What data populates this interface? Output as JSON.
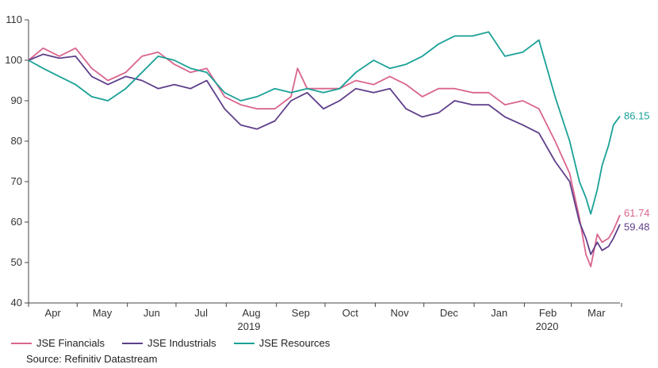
{
  "chart_data": {
    "type": "line",
    "source": "Source: Refinitiv Datastream",
    "ylim": [
      40,
      110
    ],
    "yticks": [
      40,
      50,
      60,
      70,
      80,
      90,
      100,
      110
    ],
    "x_months": [
      "Apr",
      "May",
      "Jun",
      "Jul",
      "Aug",
      "Sep",
      "Oct",
      "Nov",
      "Dec",
      "Jan",
      "Feb",
      "Mar"
    ],
    "x_years": [
      "2019",
      "2020"
    ],
    "grid": false,
    "legend_position": "bottom-left",
    "series": [
      {
        "name": "JSE Financials",
        "color": "#d9658e",
        "end_label": "61.74",
        "points": [
          [
            "2019-04-01",
            100
          ],
          [
            "2019-04-10",
            103
          ],
          [
            "2019-04-20",
            101
          ],
          [
            "2019-04-30",
            103
          ],
          [
            "2019-05-10",
            98
          ],
          [
            "2019-05-20",
            95
          ],
          [
            "2019-05-31",
            97
          ],
          [
            "2019-06-10",
            101
          ],
          [
            "2019-06-20",
            102
          ],
          [
            "2019-06-30",
            99
          ],
          [
            "2019-07-10",
            97
          ],
          [
            "2019-07-20",
            98
          ],
          [
            "2019-07-31",
            91
          ],
          [
            "2019-08-10",
            89
          ],
          [
            "2019-08-20",
            88
          ],
          [
            "2019-08-31",
            88
          ],
          [
            "2019-09-10",
            91
          ],
          [
            "2019-09-14",
            98
          ],
          [
            "2019-09-20",
            93
          ],
          [
            "2019-09-30",
            93
          ],
          [
            "2019-10-10",
            93
          ],
          [
            "2019-10-20",
            95
          ],
          [
            "2019-10-31",
            94
          ],
          [
            "2019-11-10",
            96
          ],
          [
            "2019-11-20",
            94
          ],
          [
            "2019-11-30",
            91
          ],
          [
            "2019-12-10",
            93
          ],
          [
            "2019-12-20",
            93
          ],
          [
            "2019-12-31",
            92
          ],
          [
            "2020-01-10",
            92
          ],
          [
            "2020-01-20",
            89
          ],
          [
            "2020-01-31",
            90
          ],
          [
            "2020-02-10",
            88
          ],
          [
            "2020-02-20",
            80
          ],
          [
            "2020-02-29",
            72
          ],
          [
            "2020-03-06",
            61
          ],
          [
            "2020-03-10",
            52
          ],
          [
            "2020-03-13",
            49
          ],
          [
            "2020-03-17",
            57
          ],
          [
            "2020-03-20",
            55
          ],
          [
            "2020-03-24",
            56
          ],
          [
            "2020-03-27",
            58
          ],
          [
            "2020-03-31",
            61.74
          ]
        ]
      },
      {
        "name": "JSE Industrials",
        "color": "#5e3f8a",
        "end_label": "59.48",
        "points": [
          [
            "2019-04-01",
            100
          ],
          [
            "2019-04-10",
            101.5
          ],
          [
            "2019-04-20",
            100.5
          ],
          [
            "2019-04-30",
            101
          ],
          [
            "2019-05-10",
            96
          ],
          [
            "2019-05-20",
            94
          ],
          [
            "2019-05-31",
            96
          ],
          [
            "2019-06-10",
            95
          ],
          [
            "2019-06-20",
            93
          ],
          [
            "2019-06-30",
            94
          ],
          [
            "2019-07-10",
            93
          ],
          [
            "2019-07-20",
            95
          ],
          [
            "2019-07-31",
            88
          ],
          [
            "2019-08-10",
            84
          ],
          [
            "2019-08-20",
            83
          ],
          [
            "2019-08-31",
            85
          ],
          [
            "2019-09-10",
            90
          ],
          [
            "2019-09-20",
            92
          ],
          [
            "2019-09-30",
            88
          ],
          [
            "2019-10-10",
            90
          ],
          [
            "2019-10-20",
            93
          ],
          [
            "2019-10-31",
            92
          ],
          [
            "2019-11-10",
            93
          ],
          [
            "2019-11-20",
            88
          ],
          [
            "2019-11-30",
            86
          ],
          [
            "2019-12-10",
            87
          ],
          [
            "2019-12-20",
            90
          ],
          [
            "2019-12-31",
            89
          ],
          [
            "2020-01-10",
            89
          ],
          [
            "2020-01-20",
            86
          ],
          [
            "2020-01-31",
            84
          ],
          [
            "2020-02-10",
            82
          ],
          [
            "2020-02-20",
            75
          ],
          [
            "2020-02-29",
            70
          ],
          [
            "2020-03-06",
            60
          ],
          [
            "2020-03-10",
            56
          ],
          [
            "2020-03-13",
            52
          ],
          [
            "2020-03-17",
            55
          ],
          [
            "2020-03-20",
            53
          ],
          [
            "2020-03-24",
            54
          ],
          [
            "2020-03-27",
            56
          ],
          [
            "2020-03-31",
            59.48
          ]
        ]
      },
      {
        "name": "JSE Resources",
        "color": "#1aa197",
        "end_label": "86.15",
        "points": [
          [
            "2019-04-01",
            100
          ],
          [
            "2019-04-10",
            98
          ],
          [
            "2019-04-20",
            96
          ],
          [
            "2019-04-30",
            94
          ],
          [
            "2019-05-10",
            91
          ],
          [
            "2019-05-20",
            90
          ],
          [
            "2019-05-31",
            93
          ],
          [
            "2019-06-10",
            97
          ],
          [
            "2019-06-20",
            101
          ],
          [
            "2019-06-30",
            100
          ],
          [
            "2019-07-10",
            98
          ],
          [
            "2019-07-20",
            97
          ],
          [
            "2019-07-31",
            92
          ],
          [
            "2019-08-10",
            90
          ],
          [
            "2019-08-20",
            91
          ],
          [
            "2019-08-31",
            93
          ],
          [
            "2019-09-10",
            92
          ],
          [
            "2019-09-20",
            93
          ],
          [
            "2019-09-30",
            92
          ],
          [
            "2019-10-10",
            93
          ],
          [
            "2019-10-20",
            97
          ],
          [
            "2019-10-31",
            100
          ],
          [
            "2019-11-10",
            98
          ],
          [
            "2019-11-20",
            99
          ],
          [
            "2019-11-30",
            101
          ],
          [
            "2019-12-10",
            104
          ],
          [
            "2019-12-20",
            106
          ],
          [
            "2019-12-31",
            106
          ],
          [
            "2020-01-10",
            107
          ],
          [
            "2020-01-20",
            101
          ],
          [
            "2020-01-31",
            102
          ],
          [
            "2020-02-10",
            105
          ],
          [
            "2020-02-20",
            91
          ],
          [
            "2020-02-29",
            80
          ],
          [
            "2020-03-06",
            70
          ],
          [
            "2020-03-10",
            66
          ],
          [
            "2020-03-13",
            62
          ],
          [
            "2020-03-17",
            68
          ],
          [
            "2020-03-20",
            74
          ],
          [
            "2020-03-24",
            79
          ],
          [
            "2020-03-27",
            84
          ],
          [
            "2020-03-31",
            86.15
          ]
        ]
      }
    ]
  }
}
